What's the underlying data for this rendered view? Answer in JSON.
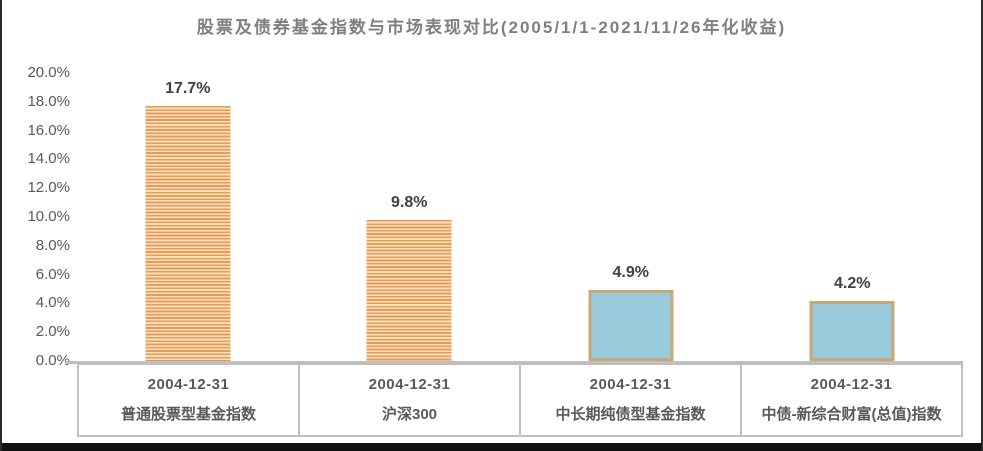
{
  "title": "股票及债券基金指数与市场表现对比(2005/1/1-2021/11/26年化收益)",
  "colors": {
    "title_text": "#7f7f7f",
    "axis_text": "#595959",
    "value_label_text": "#404040",
    "stripe_orange": "#eb9a54",
    "stripe_light": "#f8e2c2",
    "bar_blue_fill": "#9acbdc",
    "bar_blue_border": "#c8a878",
    "axis_line": "#bfbfbf"
  },
  "chart_data": {
    "type": "bar",
    "title": "股票及债券基金指数与市场表现对比(2005/1/1-2021/11/26年化收益)",
    "categories": [
      {
        "date": "2004-12-31",
        "name": "普通股票型基金指数"
      },
      {
        "date": "2004-12-31",
        "name": "沪深300"
      },
      {
        "date": "2004-12-31",
        "name": "中长期纯债型基金指数"
      },
      {
        "date": "2004-12-31",
        "name": "中债-新综合财富(总值)指数"
      }
    ],
    "values": [
      17.7,
      9.8,
      4.9,
      4.2
    ],
    "value_labels": [
      "17.7%",
      "9.8%",
      "4.9%",
      "4.2%"
    ],
    "bar_styles": [
      "striped-orange",
      "striped-orange",
      "solid-blue",
      "solid-blue"
    ],
    "xlabel": "",
    "ylabel": "",
    "ylim": [
      0,
      20
    ],
    "ytick_values": [
      0,
      2,
      4,
      6,
      8,
      10,
      12,
      14,
      16,
      18,
      20
    ],
    "ytick_labels": [
      "0.0%",
      "2.0%",
      "4.0%",
      "6.0%",
      "8.0%",
      "10.0%",
      "12.0%",
      "14.0%",
      "16.0%",
      "18.0%",
      "20.0%"
    ],
    "grid": false,
    "legend": null
  }
}
